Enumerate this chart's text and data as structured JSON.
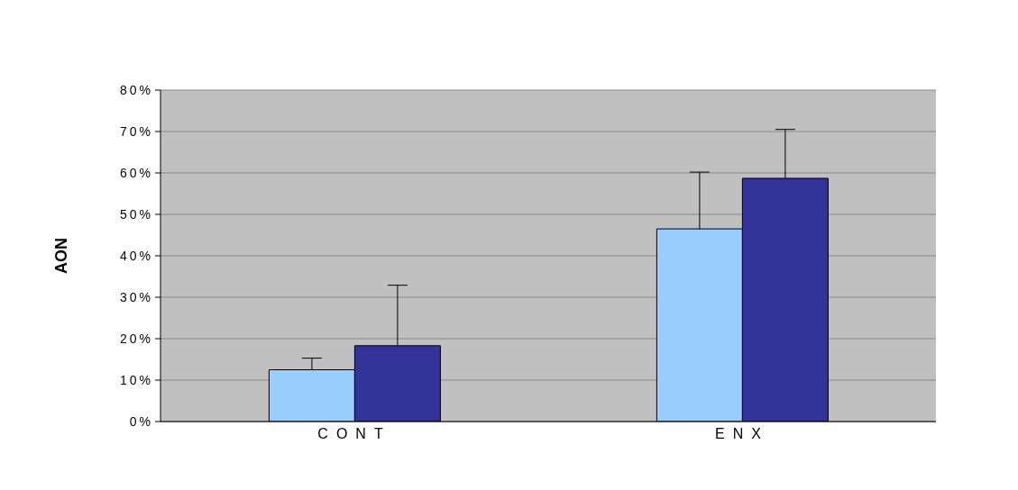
{
  "chart_data": {
    "type": "bar",
    "ylabel": "AON",
    "categories": [
      "CONT",
      "ENX"
    ],
    "series": [
      {
        "color": "#99ccff",
        "values": [
          12.5,
          46.5
        ],
        "errors": [
          [
            12.5,
            15.3
          ],
          [
            46.5,
            60.2
          ]
        ]
      },
      {
        "color": "#333399",
        "values": [
          18.3,
          58.7
        ],
        "errors": [
          [
            18.3,
            32.9
          ],
          [
            58.7,
            70.5
          ]
        ]
      }
    ],
    "ylim": [
      0,
      80
    ],
    "yticks": [
      {
        "value": 0,
        "label": "0%"
      },
      {
        "value": 10,
        "label": "10%"
      },
      {
        "value": 20,
        "label": "20%"
      },
      {
        "value": 30,
        "label": "30%"
      },
      {
        "value": 40,
        "label": "40%"
      },
      {
        "value": 50,
        "label": "50%"
      },
      {
        "value": 60,
        "label": "60%"
      },
      {
        "value": 70,
        "label": "70%"
      },
      {
        "value": 80,
        "label": "80%"
      }
    ],
    "grid": "y",
    "legend": false
  }
}
